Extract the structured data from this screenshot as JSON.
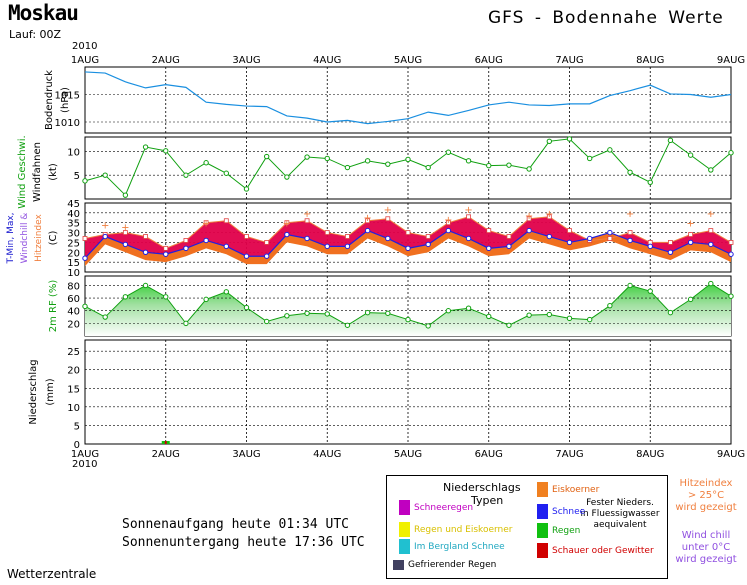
{
  "header": {
    "city": "Moskau",
    "run": "Lauf: 00Z",
    "title": "GFS - Bodennahe Werte",
    "year": "2010",
    "footer": "Wetterzentrale"
  },
  "days": [
    "1AUG",
    "2AUG",
    "3AUG",
    "4AUG",
    "5AUG",
    "6AUG",
    "7AUG",
    "8AUG",
    "9AUG"
  ],
  "sun": {
    "sunrise": "Sonnenaufgang heute 01:34 UTC",
    "sunset": "Sonnenuntergang heute 17:36 UTC"
  },
  "legend": {
    "title1": "Niederschlags",
    "title2": "Typen",
    "fester1": "Fester Nieders.",
    "fester2": "in Fluessigwasser",
    "fester3": "aequivalent",
    "items": [
      {
        "label": "Schneeregen",
        "color": "#c000c0",
        "text_color": "#c000c0"
      },
      {
        "label": "Regen und Eiskoerner",
        "color": "#f0f000",
        "text_color": "#d8c000"
      },
      {
        "label": "Im Bergland Schnee",
        "color": "#20c0d0",
        "text_color": "#20a8c0"
      },
      {
        "label": "Eiskoerner",
        "color": "#f08020",
        "text_color": "#e06010"
      },
      {
        "label": "Schnee",
        "color": "#2020f0",
        "text_color": "#2020f0"
      },
      {
        "label": "Regen",
        "color": "#10c010",
        "text_color": "#10a010"
      },
      {
        "label": "Schauer oder Gewitter",
        "color": "#d00000",
        "text_color": "#d00000"
      },
      {
        "label": "Gefrierender Regen",
        "color": "#404060",
        "text_color": "#000000"
      }
    ],
    "hitze": [
      "Hitzeindex",
      "> 25°C",
      "wird gezeigt"
    ],
    "windchill": [
      "Wind chill",
      "unter 0°C",
      "wird gezeigt"
    ]
  },
  "chart_data": [
    {
      "type": "line",
      "panel": "pressure",
      "ylabel": "Bodendruck",
      "unit": "(hPa)",
      "ylim": [
        1008,
        1020
      ],
      "yticks": [
        1010,
        1015
      ],
      "color": "#1a8fe0",
      "x": [
        0,
        0.25,
        0.5,
        0.75,
        1,
        1.25,
        1.5,
        1.75,
        2,
        2.25,
        2.5,
        2.75,
        3,
        3.25,
        3.5,
        3.75,
        4,
        4.25,
        4.5,
        4.75,
        5,
        5.25,
        5.5,
        5.75,
        6,
        6.25,
        6.5,
        6.75,
        7,
        7.25,
        7.5,
        7.75,
        8
      ],
      "values": [
        1019.1,
        1018.9,
        1017.3,
        1016.2,
        1016.8,
        1016.3,
        1013.6,
        1013.2,
        1012.9,
        1012.8,
        1011.1,
        1010.7,
        1010.0,
        1010.3,
        1009.7,
        1010.1,
        1010.6,
        1011.8,
        1011.2,
        1012.1,
        1013.1,
        1013.6,
        1013.1,
        1013.0,
        1013.3,
        1013.3,
        1014.8,
        1015.7,
        1016.7,
        1015.1,
        1015.0,
        1014.5,
        1015.0
      ]
    },
    {
      "type": "line",
      "panel": "wind",
      "ylabel": "Wind Geschwi.",
      "ylabel2": "Windfahnen",
      "unit": "(kt)",
      "ylim": [
        0,
        13
      ],
      "yticks": [
        5,
        10
      ],
      "color": "#10a010",
      "x": [
        0,
        0.25,
        0.5,
        0.75,
        1,
        1.25,
        1.5,
        1.75,
        2,
        2.25,
        2.5,
        2.75,
        3,
        3.25,
        3.5,
        3.75,
        4,
        4.25,
        4.5,
        4.75,
        5,
        5.25,
        5.5,
        5.75,
        6,
        6.25,
        6.5,
        6.75,
        7,
        7.25,
        7.5,
        7.75,
        8
      ],
      "values": [
        3.8,
        5.0,
        0.8,
        10.9,
        10.1,
        5.0,
        7.6,
        5.4,
        2.1,
        8.9,
        4.6,
        8.8,
        8.5,
        6.6,
        8.0,
        7.3,
        8.3,
        6.6,
        9.8,
        8.0,
        7.0,
        7.1,
        6.3,
        12.1,
        12.6,
        8.5,
        10.3,
        5.6,
        3.5,
        12.3,
        9.2,
        6.1,
        9.7
      ]
    },
    {
      "type": "area",
      "panel": "temperature",
      "ylabel": "T-Min, Max,",
      "ylabel2": "Windchill &",
      "ylabel3": "Hitzeindex",
      "unit": "(C)",
      "ylim": [
        10,
        45
      ],
      "yticks": [
        10,
        15,
        20,
        25,
        30,
        35,
        40,
        45
      ],
      "x": [
        0,
        0.25,
        0.5,
        0.75,
        1,
        1.25,
        1.5,
        1.75,
        2,
        2.25,
        2.5,
        2.75,
        3,
        3.25,
        3.5,
        3.75,
        4,
        4.25,
        4.5,
        4.75,
        5,
        5.25,
        5.5,
        5.75,
        6,
        6.25,
        6.5,
        6.75,
        7,
        7.25,
        7.5,
        7.75,
        8
      ],
      "series": [
        {
          "name": "T-Max",
          "color": "#e0004a",
          "values": [
            27,
            29,
            30,
            28,
            22,
            26,
            35,
            36,
            28,
            25,
            35,
            36,
            30,
            28,
            36,
            37,
            30,
            28,
            35,
            38,
            31,
            28,
            37,
            38,
            31,
            26,
            27,
            30,
            25,
            25,
            29,
            31,
            25
          ]
        },
        {
          "name": "T-Min",
          "color": "#f07020",
          "values": [
            17,
            28,
            24,
            20,
            19,
            22,
            26,
            23,
            18,
            18,
            29,
            27,
            23,
            23,
            31,
            27,
            22,
            24,
            31,
            27,
            22,
            23,
            31,
            28,
            25,
            27,
            30,
            26,
            23,
            20,
            25,
            24,
            19
          ]
        },
        {
          "name": "Hitzeindex",
          "color": "#f08040",
          "values": [
            null,
            34,
            33,
            null,
            null,
            null,
            35,
            null,
            null,
            null,
            35,
            40,
            null,
            null,
            38,
            42,
            null,
            null,
            37,
            42,
            null,
            null,
            39,
            40,
            null,
            null,
            null,
            40,
            null,
            null,
            35,
            40,
            null
          ]
        }
      ]
    },
    {
      "type": "area",
      "panel": "humidity",
      "ylabel": "2m RF (%)",
      "ylim": [
        0,
        95
      ],
      "yticks": [
        20,
        40,
        60,
        80
      ],
      "color": "#10a010",
      "x": [
        0,
        0.25,
        0.5,
        0.75,
        1,
        1.25,
        1.5,
        1.75,
        2,
        2.25,
        2.5,
        2.75,
        3,
        3.25,
        3.5,
        3.75,
        4,
        4.25,
        4.5,
        4.75,
        5,
        5.25,
        5.5,
        5.75,
        6,
        6.25,
        6.5,
        6.75,
        7,
        7.25,
        7.5,
        7.75,
        8
      ],
      "values": [
        47,
        30,
        62,
        80,
        62,
        20,
        58,
        70,
        45,
        23,
        32,
        36,
        35,
        17,
        37,
        36,
        26,
        16,
        40,
        44,
        31,
        17,
        33,
        34,
        28,
        26,
        48,
        80,
        71,
        37,
        58,
        83,
        63
      ]
    },
    {
      "type": "bar",
      "panel": "precipitation",
      "ylabel": "Niederschlag",
      "unit": "(mm)",
      "ylim": [
        0,
        28
      ],
      "yticks": [
        0,
        5,
        10,
        15,
        20,
        25
      ],
      "x": [
        1
      ],
      "values": [
        0.8
      ],
      "color": "#10c010"
    }
  ]
}
